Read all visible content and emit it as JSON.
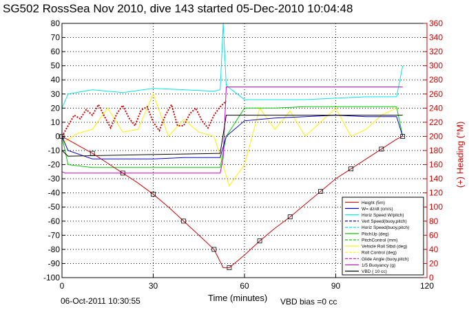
{
  "title": "SG502 RossSea Nov 2010, dive 143 started 05-Dec-2010 10:04:48",
  "footer": {
    "date": "06-Oct-2011 10:30:55",
    "xlabel": "Time (minutes)",
    "vbd_bias": "VBD bias =0 cc"
  },
  "chart_data": {
    "type": "line",
    "title": "SG502 RossSea Nov 2010, dive 143 started 05-Dec-2010 10:04:48",
    "xlabel": "Time (minutes)",
    "ylabel": "",
    "y2label": "(+) Heading (°M)",
    "xlim": [
      0,
      120
    ],
    "ylim": [
      -100,
      80
    ],
    "y2lim": [
      0,
      360
    ],
    "xticks": [
      0,
      30,
      60,
      90,
      120
    ],
    "yticks": [
      -100,
      -90,
      -80,
      -70,
      -60,
      -50,
      -40,
      -30,
      -20,
      -10,
      0,
      10,
      20,
      30,
      40,
      50,
      60,
      70,
      80
    ],
    "y2ticks": [
      0,
      20,
      40,
      60,
      80,
      100,
      120,
      140,
      160,
      180,
      200,
      220,
      240,
      260,
      280,
      300,
      320,
      340,
      360
    ],
    "grid": true,
    "legend_position": "lower-right",
    "colors": {
      "height": "#d00000",
      "w_dzdt": "#0000cc",
      "horiz_speed_w_pitch": "#00e5e5",
      "vert_speed_buoy": "#0000cc",
      "horiz_speed_buoy": "#00e5e5",
      "pitch_up": "#00cc00",
      "pitch_control": "#00cc00",
      "vehicle_roll": "#ffee00",
      "roll_control": "#ffee00",
      "glide_angle": "#cc00cc",
      "buoyancy": "#cc00cc",
      "vbd": "#000000",
      "heading": "#d00000",
      "axis_right": "#d00000"
    },
    "legend": [
      {
        "label": "Height (5m)",
        "color": "#d00000",
        "dash": "solid"
      },
      {
        "label": "W= dz/dt (cm/s)",
        "color": "#0000cc",
        "dash": "solid"
      },
      {
        "label": "Horiz Speed W/pitch)",
        "color": "#00e5e5",
        "dash": "solid"
      },
      {
        "label": "Vert Speed(buoy,pitch)",
        "color": "#0000cc",
        "dash": "dashed"
      },
      {
        "label": "Horiz Speed(buoy,pitch)",
        "color": "#00e5e5",
        "dash": "dashed"
      },
      {
        "label": "PitchUp (deg)",
        "color": "#00cc00",
        "dash": "solid"
      },
      {
        "label": "PitchControl (mm)",
        "color": "#00cc00",
        "dash": "dashed"
      },
      {
        "label": "Vehicle Roll Stbd (deg)",
        "color": "#ffee00",
        "dash": "solid"
      },
      {
        "label": "Roll Control (deg)",
        "color": "#ffee00",
        "dash": "dashed"
      },
      {
        "label": "Glide Angle (buoy,pitch)",
        "color": "#cc00cc",
        "dash": "dashed"
      },
      {
        "label": "1/5 Buoyancy (g)",
        "color": "#cc00cc",
        "dash": "solid"
      },
      {
        "label": "VBD ( 10 cc)",
        "color": "#000000",
        "dash": "solid"
      }
    ],
    "series": [
      {
        "name": "Height (5m)",
        "x": [
          0,
          5,
          10,
          15,
          20,
          25,
          30,
          35,
          40,
          45,
          50,
          53,
          55,
          60,
          65,
          70,
          75,
          80,
          85,
          90,
          95,
          100,
          105,
          110,
          112
        ],
        "y": [
          0,
          -6,
          -12,
          -19,
          -26,
          -33,
          -41,
          -50,
          -60,
          -70,
          -80,
          -93,
          -93,
          -84,
          -74,
          -65,
          -57,
          -48,
          -39,
          -30,
          -23,
          -16,
          -9,
          -2,
          0
        ]
      },
      {
        "name": "Heading",
        "axis": "right",
        "x": [
          0,
          2,
          4,
          6,
          8,
          10,
          12,
          14,
          16,
          18,
          20,
          22,
          24,
          26,
          28,
          30,
          32,
          34,
          36,
          38,
          40,
          42,
          44,
          46,
          48,
          50,
          52,
          54
        ],
        "y": [
          200,
          215,
          230,
          225,
          238,
          230,
          245,
          228,
          212,
          232,
          244,
          226,
          215,
          237,
          242,
          220,
          208,
          230,
          245,
          215,
          215,
          232,
          240,
          222,
          212,
          230,
          242,
          250
        ]
      },
      {
        "name": "W= dz/dt (cm/s)",
        "x": [
          0,
          2,
          10,
          20,
          30,
          40,
          50,
          52,
          54,
          60,
          70,
          80,
          90,
          100,
          110,
          112
        ],
        "y": [
          0,
          -10,
          -16,
          -16,
          -16,
          -15,
          -15,
          -15,
          0,
          11,
          13,
          14,
          15,
          14,
          14,
          0
        ]
      },
      {
        "name": "Horiz Speed W/pitch)",
        "x": [
          0,
          2,
          10,
          20,
          30,
          40,
          50,
          52,
          53,
          54,
          60,
          70,
          80,
          90,
          100,
          110,
          112
        ],
        "y": [
          20,
          30,
          33,
          31,
          34,
          33,
          32,
          33,
          80,
          36,
          26,
          26,
          26,
          27,
          28,
          28,
          50
        ]
      },
      {
        "name": "PitchUp (deg)",
        "x": [
          0,
          2,
          10,
          20,
          30,
          40,
          50,
          52,
          54,
          60,
          70,
          80,
          90,
          100,
          110,
          112
        ],
        "y": [
          0,
          -20,
          -22,
          -22,
          -22,
          -22,
          -22,
          -22,
          0,
          20,
          20,
          21,
          21,
          21,
          21,
          0
        ]
      },
      {
        "name": "1/5 Buoyancy (g)",
        "x": [
          0,
          1,
          52,
          53,
          54,
          112
        ],
        "y": [
          -25,
          -26,
          -26,
          -15,
          35,
          35
        ]
      },
      {
        "name": "VBD ( 10 cc)",
        "x": [
          0,
          2,
          52,
          54,
          112
        ],
        "y": [
          -10,
          -14,
          -12,
          15,
          15
        ]
      },
      {
        "name": "Vehicle Roll Stbd (deg)",
        "x": [
          0,
          5,
          10,
          15,
          20,
          25,
          30,
          35,
          40,
          45,
          50,
          55,
          60,
          65,
          70,
          75,
          80,
          85,
          90,
          95,
          100,
          105,
          110
        ],
        "y": [
          -5,
          2,
          5,
          20,
          3,
          5,
          30,
          0,
          12,
          3,
          0,
          -35,
          -20,
          20,
          5,
          18,
          0,
          10,
          20,
          0,
          5,
          15,
          20
        ]
      }
    ]
  }
}
